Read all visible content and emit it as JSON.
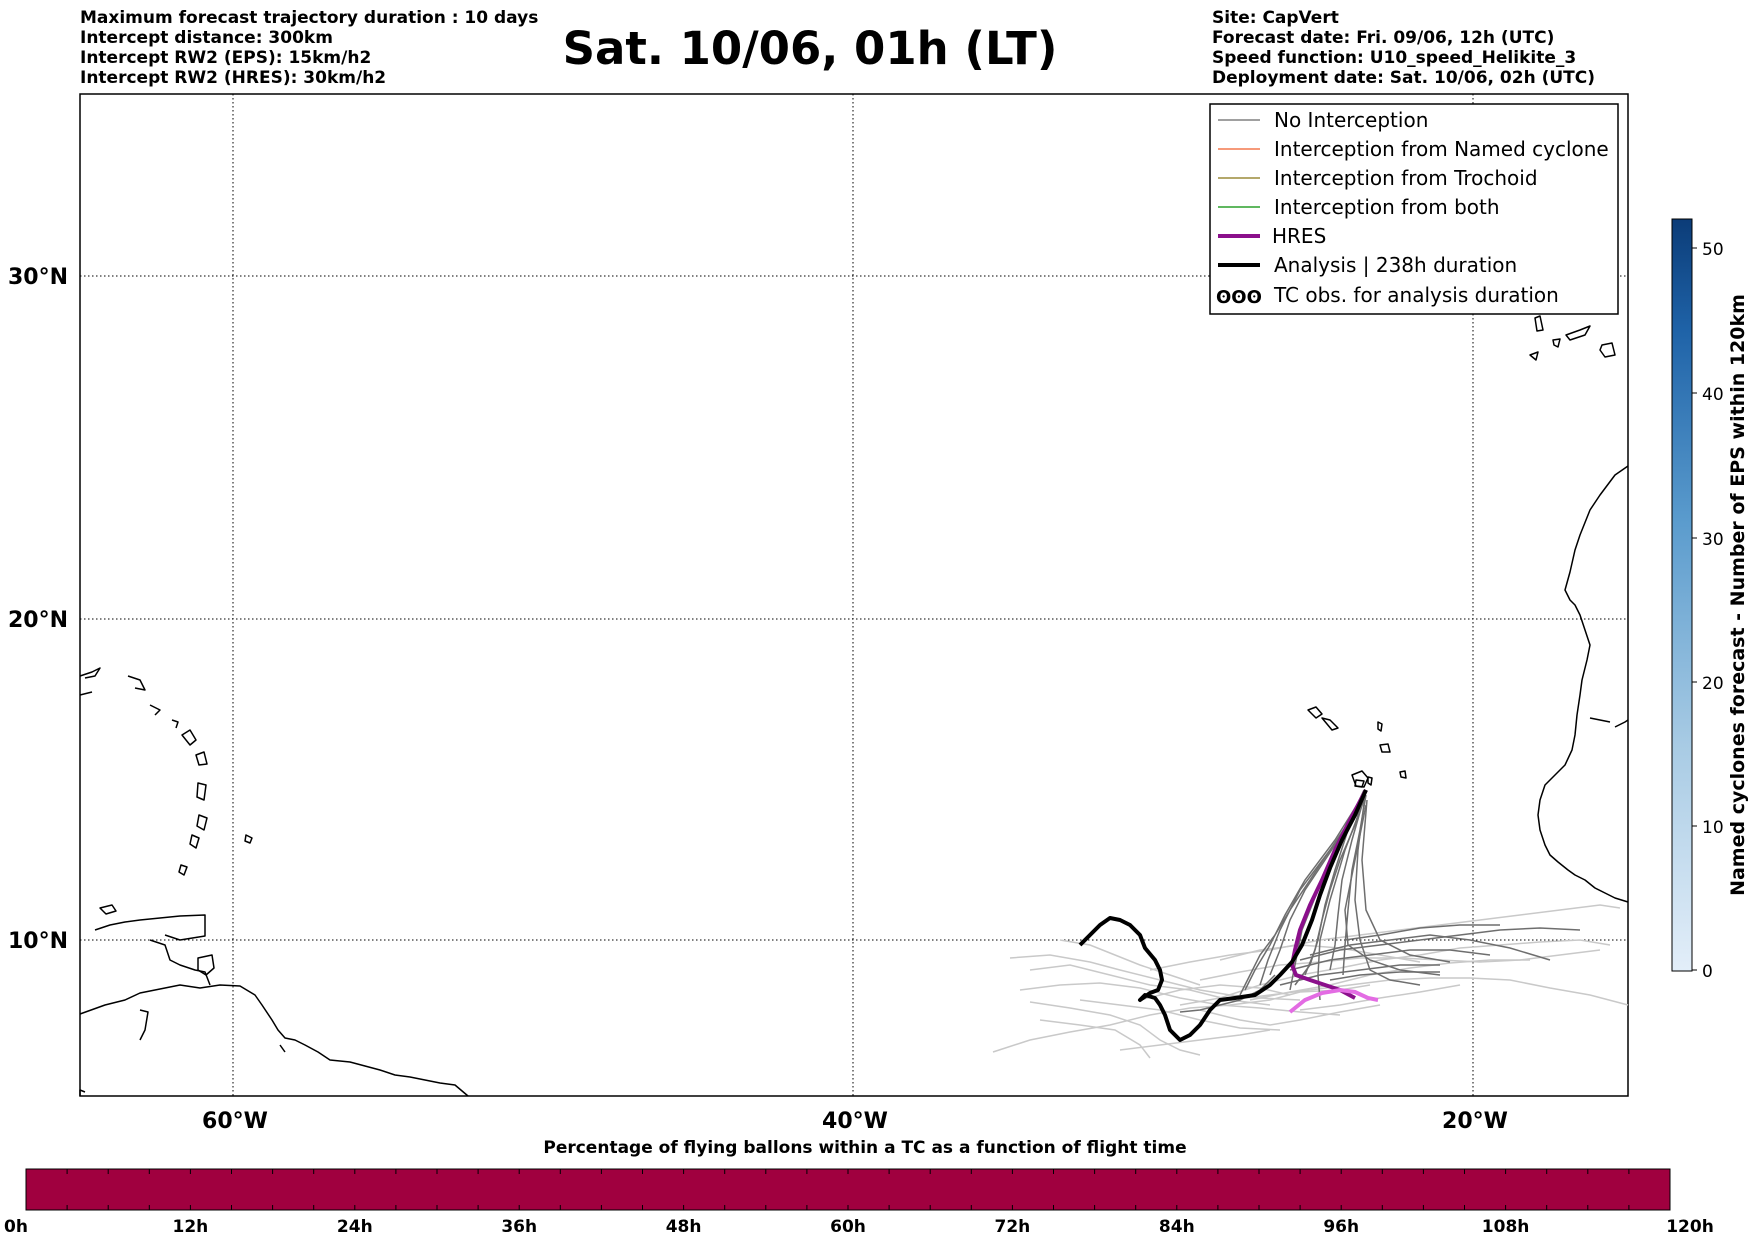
{
  "header_left": [
    "Maximum forecast trajectory duration : 10 days",
    "Intercept distance: 300km",
    "Intercept RW2 (EPS):  15km/h2",
    "Intercept RW2 (HRES): 30km/h2"
  ],
  "title": "Sat. 10/06, 01h (LT)",
  "header_right": [
    "Site: CapVert",
    "Forecast date: Fri. 09/06, 12h (UTC)",
    "Speed function: U10_speed_Helikite_3",
    "Deployment date: Sat. 10/06, 02h (UTC)"
  ],
  "map": {
    "lat_labels": [
      "30°N",
      "20°N",
      "10°N"
    ],
    "lon_labels": [
      "60°W",
      "40°W",
      "20°W"
    ]
  },
  "legend": [
    {
      "label": "No Interception",
      "color": "#808080"
    },
    {
      "label": "Interception from Named cyclone",
      "color": "#f4794e"
    },
    {
      "label": "Interception from Trochoid",
      "color": "#9b8b3a"
    },
    {
      "label": "Interception from both",
      "color": "#2ca02c"
    },
    {
      "label": "HRES",
      "color": "#8b0f8b"
    },
    {
      "label": "Analysis | 238h duration",
      "color": "#000000"
    },
    {
      "label": "TC obs. for analysis duration",
      "color": "#000000"
    }
  ],
  "tc_symbol": "ʘʘʘ",
  "colorbar": {
    "label": "Named cyclones forecast - Number of EPS within 120km",
    "ticks": [
      "0",
      "10",
      "20",
      "30",
      "40",
      "50"
    ],
    "color_low": "#e3eef9",
    "color_high": "#0b3c78"
  },
  "timebar": {
    "title": "Percentage of flying ballons within a TC as a function of flight time",
    "ticks": [
      "0h",
      "12h",
      "24h",
      "36h",
      "48h",
      "60h",
      "72h",
      "84h",
      "96h",
      "108h",
      "120h"
    ],
    "fill_color": "#a0003f"
  }
}
